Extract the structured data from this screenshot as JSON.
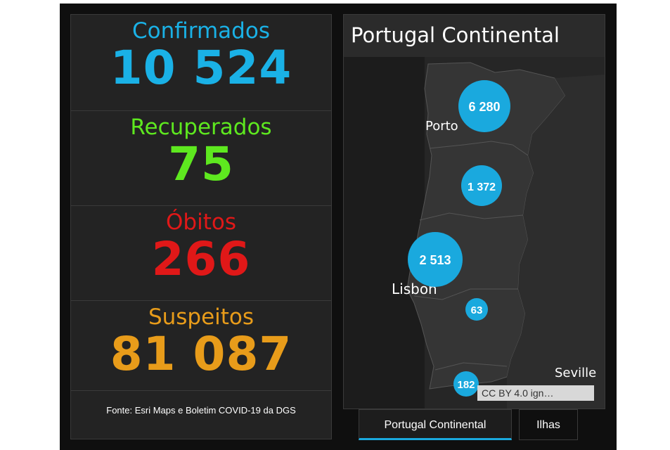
{
  "stats": {
    "confirmados": {
      "label": "Confirmados",
      "value": "10 524",
      "color": "#1ab1e6"
    },
    "recuperados": {
      "label": "Recuperados",
      "value": "75",
      "color": "#5ee81f"
    },
    "obitos": {
      "label": "Óbitos",
      "value": "266",
      "color": "#e01818"
    },
    "suspeitos": {
      "label": "Suspeitos",
      "value": "81 087",
      "color": "#e89c1a"
    }
  },
  "source": "Fonte:  Esri Maps e Boletim COVID-19 da DGS",
  "map": {
    "title": "Portugal Continental",
    "cities": [
      "Porto",
      "Lisbon",
      "Seville"
    ],
    "bubbles": [
      "6 280",
      "1 372",
      "2 513",
      "63",
      "182"
    ],
    "attribution": "CC BY 4.0 ign…",
    "bubble_color": "#1aa9de"
  },
  "tabs": [
    "Portugal Continental",
    "Ilhas"
  ]
}
